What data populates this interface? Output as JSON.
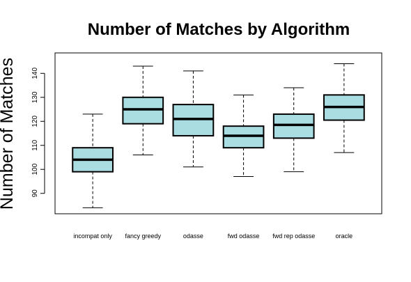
{
  "chart_data": {
    "type": "boxplot",
    "title": "Number of Matches by Algorithm",
    "xlabel": "",
    "ylabel": "Number of Matches",
    "ylim": [
      81.5,
      148.5
    ],
    "yticks": [
      90,
      100,
      110,
      120,
      130,
      140
    ],
    "box_fill": "#aadde2",
    "grid": false,
    "categories": [
      "incompat only",
      "fancy greedy",
      "odasse",
      "fwd odasse",
      "fwd rep odasse",
      "oracle"
    ],
    "boxes": [
      {
        "category": "incompat only",
        "min": 84,
        "q1": 99,
        "median": 104,
        "q3": 109,
        "max": 123
      },
      {
        "category": "fancy greedy",
        "min": 106,
        "q1": 119,
        "median": 125,
        "q3": 130,
        "max": 143
      },
      {
        "category": "odasse",
        "min": 101,
        "q1": 114,
        "median": 121,
        "q3": 127,
        "max": 141
      },
      {
        "category": "fwd odasse",
        "min": 97,
        "q1": 109,
        "median": 114,
        "q3": 118,
        "max": 131
      },
      {
        "category": "fwd rep odasse",
        "min": 99,
        "q1": 113,
        "median": 118.5,
        "q3": 123,
        "max": 134
      },
      {
        "category": "oracle",
        "min": 107,
        "q1": 120.5,
        "median": 126,
        "q3": 131,
        "max": 144
      }
    ]
  }
}
